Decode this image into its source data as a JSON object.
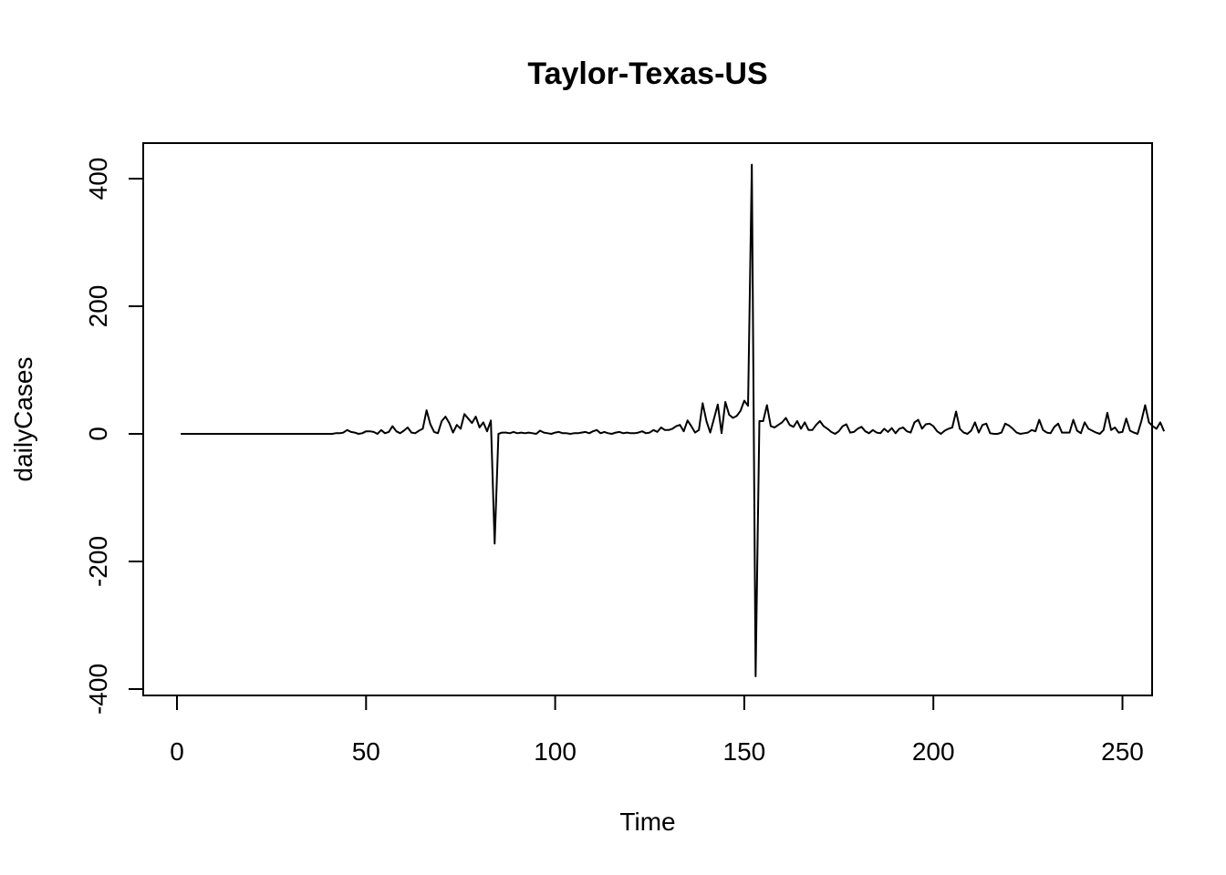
{
  "chart_data": {
    "type": "line",
    "title": "Taylor-Texas-US",
    "xlabel": "Time",
    "ylabel": "dailyCases",
    "xlim": [
      1,
      248
    ],
    "ylim": [
      -400,
      420
    ],
    "x_ticks": [
      0,
      50,
      100,
      150,
      200,
      250
    ],
    "y_ticks": [
      -400,
      -200,
      0,
      200,
      400
    ],
    "grid": false,
    "legend": "none",
    "line_color": "#000000",
    "series": [
      {
        "x_start": 1,
        "values": [
          0,
          0,
          0,
          0,
          0,
          0,
          0,
          0,
          0,
          0,
          0,
          0,
          0,
          0,
          0,
          0,
          0,
          0,
          0,
          0,
          0,
          0,
          0,
          0,
          0,
          0,
          0,
          0,
          0,
          0,
          0,
          0,
          0,
          0,
          0,
          0,
          0,
          0,
          0,
          0,
          0,
          1,
          1,
          2,
          6,
          3,
          2,
          0,
          1,
          4,
          4,
          3,
          0,
          6,
          1,
          3,
          12,
          4,
          1,
          5,
          10,
          2,
          1,
          5,
          8,
          37,
          15,
          3,
          1,
          20,
          27,
          17,
          2,
          14,
          8,
          31,
          24,
          17,
          27,
          10,
          18,
          4,
          21,
          -172,
          0,
          2,
          2,
          1,
          3,
          1,
          2,
          1,
          2,
          1,
          0,
          5,
          2,
          1,
          0,
          2,
          3,
          1,
          1,
          0,
          1,
          1,
          2,
          3,
          1,
          4,
          6,
          1,
          3,
          1,
          0,
          2,
          3,
          1,
          2,
          1,
          1,
          2,
          4,
          1,
          2,
          6,
          3,
          10,
          6,
          6,
          8,
          12,
          14,
          4,
          21,
          12,
          2,
          6,
          48,
          20,
          2,
          24,
          46,
          1,
          50,
          30,
          25,
          28,
          36,
          52,
          44,
          422,
          -380,
          20,
          20,
          45,
          12,
          10,
          14,
          18,
          25,
          14,
          11,
          20,
          8,
          18,
          6,
          6,
          14,
          20,
          12,
          8,
          3,
          0,
          4,
          12,
          15,
          2,
          3,
          8,
          11,
          4,
          1,
          6,
          2,
          1,
          8,
          3,
          9,
          1,
          8,
          10,
          4,
          2,
          18,
          22,
          8,
          15,
          16,
          12,
          4,
          0,
          5,
          8,
          10,
          35,
          8,
          2,
          0,
          5,
          18,
          2,
          14,
          16,
          1,
          0,
          0,
          2,
          16,
          13,
          8,
          2,
          0,
          1,
          2,
          6,
          4,
          22,
          6,
          2,
          1,
          11,
          16,
          2,
          2,
          2,
          22,
          5,
          1,
          18,
          8,
          5,
          2,
          0,
          6,
          33,
          6,
          10,
          2,
          3,
          24,
          5,
          2,
          0,
          20,
          45,
          18,
          12,
          8,
          18,
          4
        ]
      }
    ]
  }
}
